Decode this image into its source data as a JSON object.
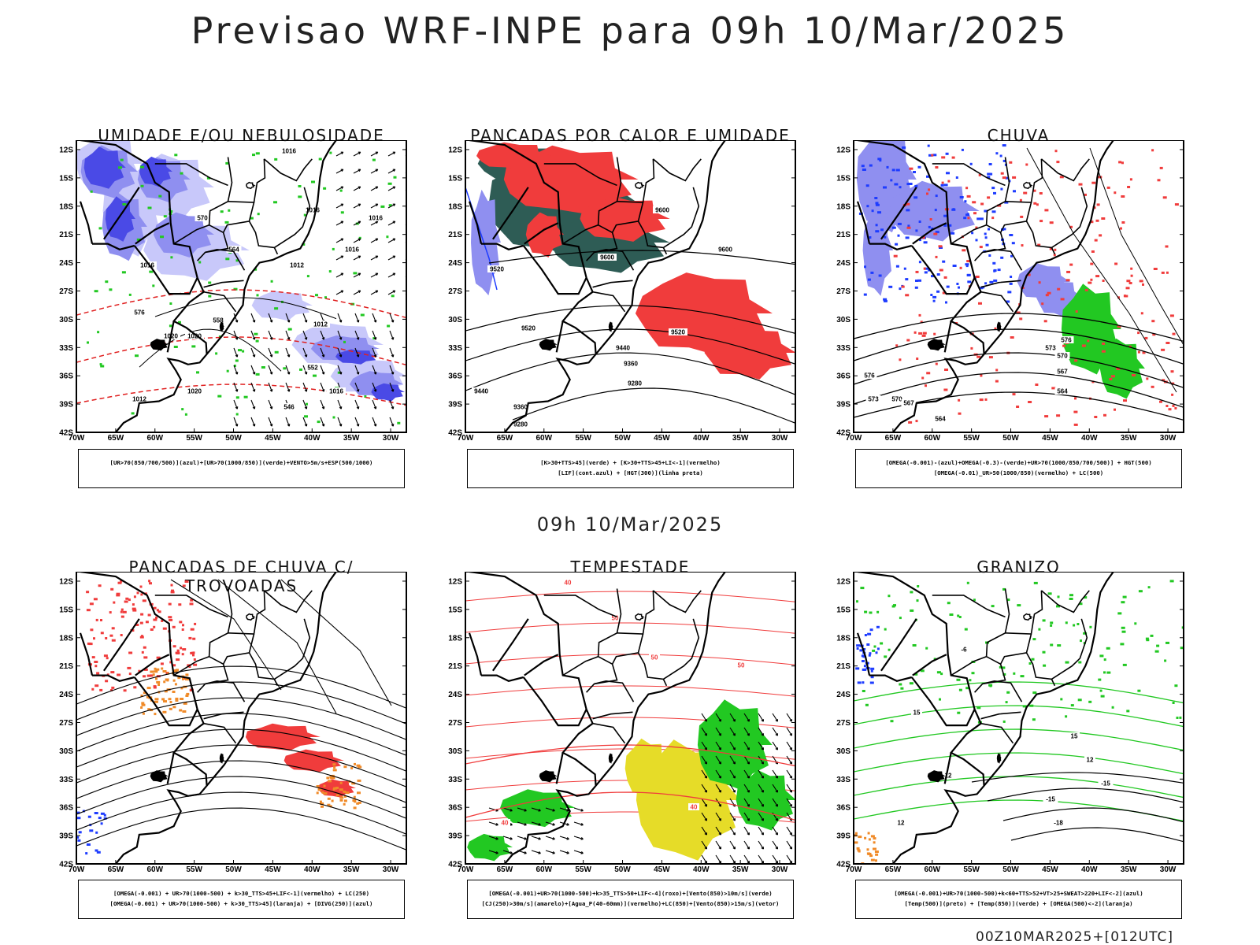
{
  "header": {
    "title": "Previsao WRF-INPE  para 09h 10/Mar/2025",
    "mid_time": "09h 10/Mar/2025",
    "footer_stamp": "00Z10MAR2025+[012UTC]"
  },
  "axes": {
    "lat_labels": [
      "12S",
      "15S",
      "18S",
      "21S",
      "24S",
      "27S",
      "30S",
      "33S",
      "36S",
      "39S",
      "42S"
    ],
    "lon_labels": [
      "70W",
      "65W",
      "60W",
      "55W",
      "50W",
      "45W",
      "40W",
      "35W",
      "30W"
    ]
  },
  "colors": {
    "blue_dark": "#4a4ae6",
    "blue_mid": "#8f8ff0",
    "blue_light": "#c8c8fa",
    "green": "#22c822",
    "red": "#f03c3c",
    "dark_teal": "#2e5c55",
    "blue_line": "#1e3cff",
    "orange": "#f08a28",
    "yellow": "#e6dc28"
  },
  "panels": [
    {
      "id": "umidade",
      "title": "UMIDADE E/OU NEBULOSIDADE",
      "legend": [
        "[UR>70(850/700/500)](azul)+[UR>70(1000/850)](verde)+VENTO>5m/s+ESP(500/1000)"
      ],
      "contour_labels": [
        "1016",
        "1016",
        "1016",
        "1016",
        "1020",
        "1016",
        "1020",
        "1012",
        "1012",
        "1016",
        "1020",
        "1012",
        "576",
        "570",
        "564",
        "558",
        "552",
        "546"
      ]
    },
    {
      "id": "pancadas_calor",
      "title": "PANCADAS POR CALOR E UMIDADE",
      "legend": [
        "[K>30+TTS>45](verde) + [K>30+TTS>45+LI<-1](vermelho)",
        "[LIF](cont.azul) + [HGT(300)](linha preta)"
      ],
      "contour_labels": [
        "9600",
        "9600",
        "9600",
        "9520",
        "9520",
        "9520",
        "9440",
        "9360",
        "9280",
        "9440",
        "9360",
        "9280"
      ]
    },
    {
      "id": "chuva",
      "title": "CHUVA",
      "legend": [
        "[OMEGA(-0.001)-(azul)+OMEGA(-0.3)-(verde)+UR>70(1000/850/700/500)] + HGT(500)",
        "[OMEGA(-0.01)_UR>50(1000/850)(vermelho) + LC(500)"
      ],
      "contour_labels": [
        "573",
        "576",
        "570",
        "567",
        "564",
        "576",
        "573",
        "570",
        "567",
        "564"
      ]
    },
    {
      "id": "trovoadas",
      "title": "PANCADAS DE CHUVA C/ TROVOADAS",
      "legend": [
        "[OMEGA(-0.001) + UR>70(1000-500) + k>30_TTS>45+LIF<-1](vermelho) + LC(250)",
        "[OMEGA(-0.001) + UR>70(1000-500) + k>30_TTS>45](laranja) + [DIVG(250)](azul)"
      ],
      "contour_labels": []
    },
    {
      "id": "tempestade",
      "title": "TEMPESTADE",
      "legend": [
        "[OMEGA(-0.001)+UR>70(1000-500)+k>35_TTS>50+LIF<-4](roxo)+[Vento(850)>10m/s](verde)",
        "[CJ(250)>30m/s](amarelo)+[Agua_P(40-60mm)](vermelho)+LC(850)+[Vento(850)>15m/s](vetor)"
      ],
      "contour_labels": [
        "40",
        "50",
        "50",
        "40",
        "50",
        "40"
      ]
    },
    {
      "id": "granizo",
      "title": "GRANIZO",
      "legend": [
        "[OMEGA(-0.001)+UR>70(1000-500)+k<60+TTS>52+VT>25+SWEAT>220+LIF<-2](azul)",
        "[Temp(500)](preto) + [Temp(850)](verde) + [OMEGA(500)<-2](laranja)"
      ],
      "contour_labels": [
        "-6",
        "-15",
        "-15",
        "-18",
        "12",
        "15",
        "12",
        "15",
        "12"
      ]
    }
  ]
}
